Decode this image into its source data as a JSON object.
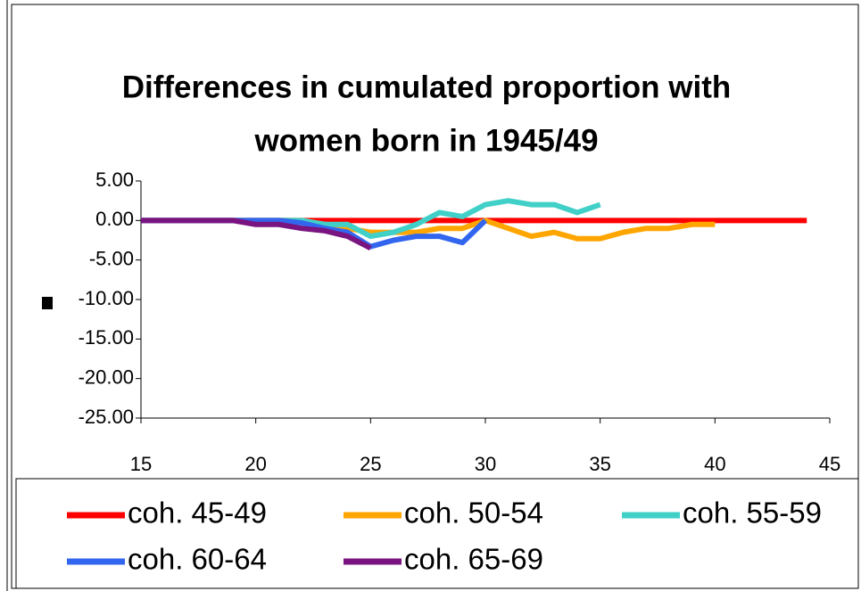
{
  "chart_data": {
    "type": "line",
    "title": [
      "Differences in cumulated proportion with",
      "women born in 1945/49"
    ],
    "x": [
      15,
      16,
      17,
      18,
      19,
      20,
      21,
      22,
      23,
      24,
      25,
      26,
      27,
      28,
      29,
      30,
      31,
      32,
      33,
      34,
      35,
      36,
      37,
      38,
      39,
      40,
      41,
      42,
      43,
      44
    ],
    "xlim": [
      15,
      45
    ],
    "xticks": [
      15,
      20,
      25,
      30,
      35,
      40,
      45
    ],
    "ylim": [
      -25,
      5
    ],
    "yticks": [
      {
        "value": -25,
        "label": "-25.00"
      },
      {
        "value": -20,
        "label": "-20.00"
      },
      {
        "value": -15,
        "label": "-15.00"
      },
      {
        "value": -10,
        "label": "-10.00"
      },
      {
        "value": -5,
        "label": "-5.00"
      },
      {
        "value": 0,
        "label": "0.00"
      },
      {
        "value": 5,
        "label": "5.00"
      }
    ],
    "grid": false,
    "legend": "bottom",
    "series": [
      {
        "name": "coh. 45-49",
        "color": "#ff0000",
        "values": [
          0,
          0,
          0,
          0,
          0,
          0,
          0,
          0,
          0,
          0,
          0,
          0,
          0,
          0,
          0,
          0,
          0,
          0,
          0,
          0,
          0,
          0,
          0,
          0,
          0,
          0,
          0,
          0,
          0,
          0
        ]
      },
      {
        "name": "coh. 50-54",
        "color": "#ffa500",
        "values": [
          0,
          0,
          0,
          0,
          0,
          0,
          0,
          0,
          -0.5,
          -1,
          -1.5,
          -1.5,
          -1.5,
          -1,
          -1,
          0,
          -1,
          -2,
          -1.5,
          -2.3,
          -2.3,
          -1.5,
          -1,
          -1,
          -0.5,
          -0.5,
          null,
          null,
          null,
          null
        ]
      },
      {
        "name": "coh. 55-59",
        "color": "#40d0c8",
        "values": [
          0,
          0,
          0,
          0,
          0,
          0,
          0,
          0,
          -0.5,
          -0.5,
          -2,
          -1.5,
          -0.5,
          1,
          0.5,
          2,
          2.5,
          2,
          2,
          1,
          2,
          null,
          null,
          null,
          null,
          null,
          null,
          null,
          null,
          null
        ]
      },
      {
        "name": "coh. 60-64",
        "color": "#3366ee",
        "values": [
          0,
          0,
          0,
          0,
          0,
          0,
          0,
          -0.3,
          -1,
          -1.5,
          -3.3,
          -2.5,
          -2,
          -2,
          -2.8,
          0,
          null,
          null,
          null,
          null,
          null,
          null,
          null,
          null,
          null,
          null,
          null,
          null,
          null,
          null
        ]
      },
      {
        "name": "coh. 65-69",
        "color": "#7a1480",
        "values": [
          0,
          0,
          0,
          0,
          0,
          -0.5,
          -0.5,
          -1,
          -1.3,
          -2,
          -3.5,
          null,
          null,
          null,
          null,
          null,
          null,
          null,
          null,
          null,
          null,
          null,
          null,
          null,
          null,
          null,
          null,
          null,
          null,
          null
        ]
      }
    ]
  }
}
